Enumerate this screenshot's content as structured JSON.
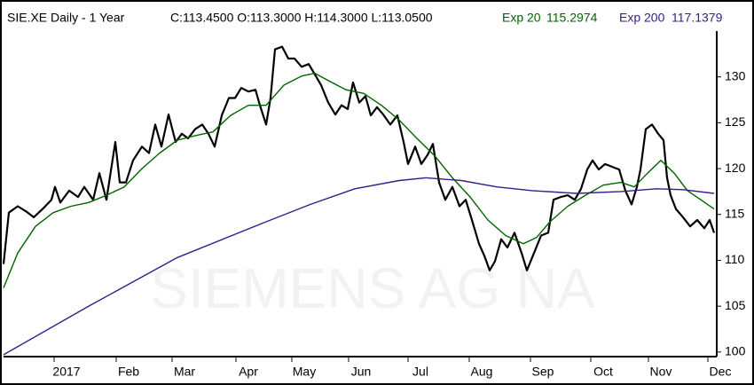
{
  "chart_data": {
    "type": "line",
    "title": "SIE.XE Daily -  1 Year",
    "quote": "C:113.4500 O:113.3000 H:114.3000 L:113.0500",
    "watermark": "SIEMENS AG NA",
    "xlim": [
      0,
      804
    ],
    "xticks": [
      {
        "value": 71,
        "label": "2017"
      },
      {
        "value": 141,
        "label": "Feb"
      },
      {
        "value": 204,
        "label": "Mar"
      },
      {
        "value": 276,
        "label": "Apr"
      },
      {
        "value": 339,
        "label": "May"
      },
      {
        "value": 403,
        "label": "Jun"
      },
      {
        "value": 470,
        "label": "Jul"
      },
      {
        "value": 539,
        "label": "Aug"
      },
      {
        "value": 608,
        "label": "Sep"
      },
      {
        "value": 676,
        "label": "Oct"
      },
      {
        "value": 741,
        "label": "Nov"
      },
      {
        "value": 808,
        "label": "Dec"
      }
    ],
    "ylim": [
      99.5,
      135
    ],
    "yticks": [
      100,
      105,
      110,
      115,
      120,
      125,
      130
    ],
    "series": [
      {
        "color": "#000000",
        "width": 2.2,
        "x": [
          0,
          6,
          16,
          26,
          34,
          44,
          54,
          58,
          64,
          74,
          84,
          91,
          101,
          108,
          116,
          126,
          131,
          138,
          146,
          156,
          164,
          171,
          178,
          186,
          194,
          201,
          208,
          216,
          224,
          231,
          238,
          246,
          254,
          261,
          268,
          276,
          284,
          289,
          296,
          301,
          306,
          314,
          321,
          328,
          336,
          344,
          352,
          358,
          366,
          374,
          381,
          388,
          394,
          401,
          408,
          414,
          421,
          428,
          436,
          444,
          451,
          456,
          464,
          471,
          478,
          484,
          491,
          498,
          506,
          514,
          521,
          528,
          536,
          542,
          548,
          554,
          561,
          568,
          576,
          584,
          590,
          598,
          606,
          614,
          620,
          628,
          636,
          644,
          651,
          658,
          664,
          671,
          678,
          686,
          694,
          701,
          708,
          714,
          718,
          724,
          731,
          738,
          744,
          748,
          752,
          758,
          766,
          774,
          782,
          790,
          796,
          801
        ],
        "values": [
          109.6,
          115.2,
          115.9,
          115.3,
          114.7,
          115.6,
          116.6,
          118.0,
          116.3,
          117.6,
          116.9,
          118.0,
          116.6,
          119.5,
          116.6,
          122.9,
          118.5,
          118.5,
          120.9,
          122.4,
          121.7,
          124.8,
          122.4,
          125.9,
          122.9,
          123.8,
          123.3,
          124.3,
          124.8,
          123.8,
          122.4,
          125.8,
          127.7,
          127.7,
          128.8,
          128.4,
          128.6,
          126.9,
          124.8,
          127.7,
          133.0,
          133.3,
          132.0,
          132.0,
          131.1,
          131.4,
          130.1,
          129.1,
          127.2,
          125.9,
          126.9,
          126.5,
          129.4,
          127.2,
          127.9,
          125.8,
          126.7,
          125.9,
          124.8,
          125.8,
          122.9,
          120.5,
          122.4,
          120.5,
          121.5,
          122.7,
          118.5,
          116.6,
          118.0,
          115.9,
          116.6,
          114.4,
          111.8,
          110.5,
          108.9,
          109.9,
          112.3,
          111.4,
          113.0,
          110.8,
          108.9,
          110.8,
          112.7,
          113.0,
          116.6,
          116.9,
          117.1,
          116.6,
          117.8,
          119.9,
          120.9,
          119.9,
          120.5,
          120.2,
          119.9,
          117.6,
          116.1,
          118.0,
          119.9,
          124.3,
          124.8,
          123.8,
          123.1,
          119.0,
          117.1,
          115.6,
          114.7,
          113.7,
          114.4,
          113.5,
          114.4,
          113.0
        ]
      },
      {
        "name": "Exp 20",
        "label": "115.2974",
        "color": "#006400",
        "width": 1.4,
        "x": [
          0,
          16,
          36,
          56,
          76,
          96,
          116,
          136,
          156,
          176,
          196,
          216,
          236,
          256,
          276,
          296,
          316,
          336,
          351,
          366,
          386,
          406,
          426,
          446,
          466,
          486,
          506,
          526,
          546,
          566,
          586,
          601,
          616,
          636,
          656,
          676,
          696,
          711,
          726,
          741,
          756,
          771,
          786,
          801
        ],
        "values": [
          107.0,
          110.8,
          113.7,
          115.2,
          115.9,
          116.3,
          117.1,
          118.0,
          120.0,
          121.7,
          123.1,
          123.6,
          124.0,
          125.8,
          126.9,
          126.9,
          129.1,
          130.1,
          130.4,
          129.6,
          128.6,
          128.2,
          126.9,
          125.3,
          123.3,
          121.4,
          119.0,
          116.9,
          114.4,
          112.7,
          111.8,
          112.5,
          114.2,
          115.9,
          117.1,
          118.2,
          118.5,
          118.0,
          119.5,
          120.9,
          119.5,
          117.6,
          116.6,
          115.6
        ]
      },
      {
        "name": "Exp 200",
        "label": "117.1379",
        "color": "#3a1a8c",
        "width": 1.4,
        "x": [
          0,
          96,
          196,
          296,
          346,
          396,
          446,
          476,
          516,
          556,
          596,
          646,
          696,
          736,
          766,
          801
        ],
        "values": [
          99.7,
          105.0,
          110.3,
          114.2,
          116.1,
          117.8,
          118.7,
          119.0,
          118.7,
          118.0,
          117.6,
          117.3,
          117.5,
          117.8,
          117.7,
          117.3
        ]
      }
    ]
  }
}
